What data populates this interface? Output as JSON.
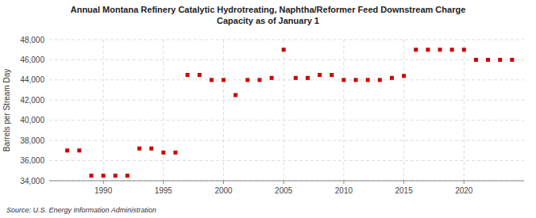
{
  "chart_data": {
    "type": "scatter",
    "title": "Annual Montana Refinery Catalytic Hydrotreating, Naphtha/Reformer Feed Downstream Charge\nCapacity as of January 1",
    "ylabel": "Barrels per Stream Day",
    "source": "Source: U.S. Energy Information Administration",
    "x": [
      1987,
      1988,
      1989,
      1990,
      1991,
      1992,
      1993,
      1994,
      1995,
      1996,
      1997,
      1998,
      1999,
      2000,
      2001,
      2002,
      2003,
      2004,
      2005,
      2006,
      2007,
      2008,
      2009,
      2010,
      2011,
      2012,
      2013,
      2014,
      2015,
      2016,
      2017,
      2018,
      2019,
      2020,
      2021,
      2022,
      2023,
      2024
    ],
    "values": [
      37000,
      37000,
      34500,
      34500,
      34500,
      34500,
      37200,
      37200,
      36800,
      36800,
      44500,
      44500,
      44000,
      44000,
      42500,
      44000,
      44000,
      44200,
      47000,
      44200,
      44200,
      44500,
      44500,
      44000,
      44000,
      44000,
      44000,
      44200,
      44400,
      47000,
      47000,
      47000,
      47000,
      47000,
      46000,
      46000,
      46000,
      46000
    ],
    "color": "#cc0000",
    "marker": "square",
    "xlim": [
      1985.5,
      2025
    ],
    "xticks": [
      1990,
      1995,
      2000,
      2005,
      2010,
      2015,
      2020
    ],
    "ylim": [
      34000,
      48000
    ],
    "yticks": [
      {
        "value": 34000,
        "label": "34,000"
      },
      {
        "value": 36000,
        "label": "36,000"
      },
      {
        "value": 38000,
        "label": "38,000"
      },
      {
        "value": 40000,
        "label": "40,000"
      },
      {
        "value": 42000,
        "label": "42,000"
      },
      {
        "value": 44000,
        "label": "44,000"
      },
      {
        "value": 46000,
        "label": "46,000"
      },
      {
        "value": 48000,
        "label": "48,000"
      }
    ],
    "grid": true
  }
}
